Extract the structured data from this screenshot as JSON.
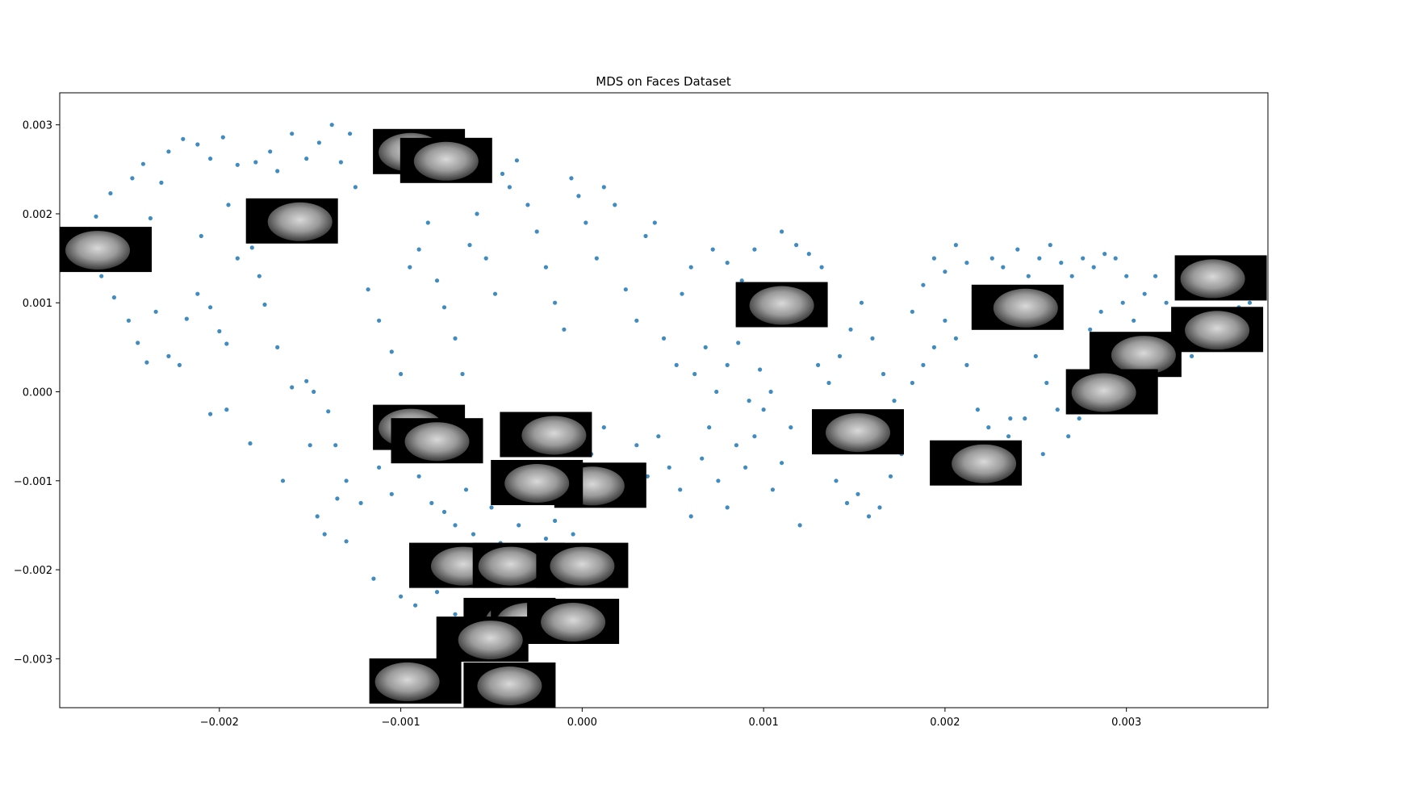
{
  "chart_data": {
    "type": "scatter",
    "title": "MDS on Faces Dataset",
    "xlabel": "",
    "ylabel": "",
    "xlim": [
      -0.00288,
      0.00378
    ],
    "ylim": [
      -0.00355,
      0.00336
    ],
    "xticks": [
      {
        "value": -0.002,
        "label": "−0.002"
      },
      {
        "value": -0.001,
        "label": "−0.001"
      },
      {
        "value": 0.0,
        "label": "0.000"
      },
      {
        "value": 0.001,
        "label": "0.001"
      },
      {
        "value": 0.002,
        "label": "0.002"
      },
      {
        "value": 0.003,
        "label": "0.003"
      }
    ],
    "yticks": [
      {
        "value": 0.003,
        "label": "0.003"
      },
      {
        "value": 0.002,
        "label": "0.002"
      },
      {
        "value": 0.001,
        "label": "0.001"
      },
      {
        "value": 0.0,
        "label": "0.000"
      },
      {
        "value": -0.001,
        "label": "−0.001"
      },
      {
        "value": -0.002,
        "label": "−0.002"
      },
      {
        "value": -0.003,
        "label": "−0.003"
      }
    ],
    "marker_color": "#1f77b4",
    "grid": false,
    "legend": "none",
    "points": [
      [
        -0.00268,
        0.00197
      ],
      [
        -0.0026,
        0.00223
      ],
      [
        -0.00248,
        0.0024
      ],
      [
        -0.00242,
        0.00256
      ],
      [
        -0.00232,
        0.00235
      ],
      [
        -0.00228,
        0.0027
      ],
      [
        -0.0022,
        0.00284
      ],
      [
        -0.00212,
        0.00278
      ],
      [
        -0.00205,
        0.00262
      ],
      [
        -0.00198,
        0.00286
      ],
      [
        -0.0019,
        0.00255
      ],
      [
        -0.0018,
        0.00258
      ],
      [
        -0.00172,
        0.0027
      ],
      [
        -0.00168,
        0.00248
      ],
      [
        -0.0016,
        0.0029
      ],
      [
        -0.00152,
        0.00262
      ],
      [
        -0.00145,
        0.0028
      ],
      [
        -0.00138,
        0.003
      ],
      [
        -0.00133,
        0.00258
      ],
      [
        -0.00128,
        0.0029
      ],
      [
        -0.00265,
        0.0013
      ],
      [
        -0.00258,
        0.00106
      ],
      [
        -0.0025,
        0.0008
      ],
      [
        -0.00245,
        0.00055
      ],
      [
        -0.0024,
        0.00033
      ],
      [
        -0.00235,
        0.0009
      ],
      [
        -0.00228,
        0.0004
      ],
      [
        -0.00222,
        0.0003
      ],
      [
        -0.00218,
        0.00082
      ],
      [
        -0.00212,
        0.0011
      ],
      [
        -0.00205,
        0.00095
      ],
      [
        -0.002,
        0.00068
      ],
      [
        -0.00196,
        0.00054
      ],
      [
        -0.0019,
        0.0015
      ],
      [
        -0.00182,
        0.00162
      ],
      [
        -0.00178,
        0.0013
      ],
      [
        -0.00175,
        0.00098
      ],
      [
        -0.00168,
        0.0005
      ],
      [
        -0.0016,
        5e-05
      ],
      [
        -0.00152,
        0.00012
      ],
      [
        -0.00148,
        0.0
      ],
      [
        -0.0014,
        -0.00022
      ],
      [
        -0.00136,
        -0.0006
      ],
      [
        -0.0013,
        -0.001
      ],
      [
        -0.00122,
        -0.00125
      ],
      [
        -0.00118,
        0.00115
      ],
      [
        -0.00112,
        0.0008
      ],
      [
        -0.00105,
        0.00045
      ],
      [
        -0.001,
        0.0002
      ],
      [
        -0.00095,
        0.0014
      ],
      [
        -0.0009,
        0.0016
      ],
      [
        -0.00085,
        0.0019
      ],
      [
        -0.0008,
        0.00125
      ],
      [
        -0.00076,
        0.00095
      ],
      [
        -0.0007,
        0.0006
      ],
      [
        -0.00066,
        0.0002
      ],
      [
        -0.00062,
        0.00165
      ],
      [
        -0.00058,
        0.002
      ],
      [
        -0.00053,
        0.0015
      ],
      [
        -0.00048,
        0.0011
      ],
      [
        -0.00044,
        0.00245
      ],
      [
        -0.0004,
        0.0023
      ],
      [
        -0.00036,
        0.0026
      ],
      [
        -0.0003,
        0.0021
      ],
      [
        -0.00025,
        0.0018
      ],
      [
        -0.0002,
        0.0014
      ],
      [
        -0.00015,
        0.001
      ],
      [
        -0.0001,
        0.0007
      ],
      [
        -6e-05,
        0.0024
      ],
      [
        -2e-05,
        0.0022
      ],
      [
        2e-05,
        0.0019
      ],
      [
        8e-05,
        0.0015
      ],
      [
        0.00012,
        0.0023
      ],
      [
        0.00018,
        0.0021
      ],
      [
        0.00024,
        0.00115
      ],
      [
        0.0003,
        0.0008
      ],
      [
        0.00035,
        0.00175
      ],
      [
        0.0004,
        0.0019
      ],
      [
        0.00045,
        0.0006
      ],
      [
        0.00052,
        0.0003
      ],
      [
        -0.00265,
        0.0016
      ],
      [
        -0.00255,
        0.0018
      ],
      [
        -0.00238,
        0.00195
      ],
      [
        -0.0021,
        0.00175
      ],
      [
        -0.00195,
        0.0021
      ],
      [
        -0.0018,
        0.00195
      ],
      [
        -0.0017,
        0.00175
      ],
      [
        -0.0015,
        0.0021
      ],
      [
        -0.00138,
        0.0018
      ],
      [
        -0.00125,
        0.0023
      ],
      [
        -0.00205,
        -0.00025
      ],
      [
        -0.00196,
        -0.0002
      ],
      [
        -0.00183,
        -0.00058
      ],
      [
        -0.00165,
        -0.001
      ],
      [
        -0.0015,
        -0.0006
      ],
      [
        -0.00146,
        -0.0014
      ],
      [
        -0.00142,
        -0.0016
      ],
      [
        -0.00135,
        -0.0012
      ],
      [
        -0.0013,
        -0.00168
      ],
      [
        -0.00112,
        -0.00085
      ],
      [
        -0.00105,
        -0.00115
      ],
      [
        -0.00098,
        -0.0007
      ],
      [
        -0.0009,
        -0.00095
      ],
      [
        -0.00083,
        -0.00125
      ],
      [
        -0.00076,
        -0.00135
      ],
      [
        -0.0007,
        -0.0015
      ],
      [
        -0.00064,
        -0.0011
      ],
      [
        -0.0006,
        -0.0016
      ],
      [
        -0.00055,
        -0.0018
      ],
      [
        -0.0005,
        -0.0013
      ],
      [
        -0.00045,
        -0.0017
      ],
      [
        -0.0004,
        -0.00195
      ],
      [
        -0.00035,
        -0.0015
      ],
      [
        -0.0003,
        -0.0018
      ],
      [
        -0.00025,
        -0.002
      ],
      [
        -0.0002,
        -0.00165
      ],
      [
        -0.00015,
        -0.00145
      ],
      [
        -0.0001,
        -0.0019
      ],
      [
        -5e-05,
        -0.0016
      ],
      [
        0.0,
        -0.0018
      ],
      [
        -0.00115,
        -0.0021
      ],
      [
        -0.001,
        -0.0023
      ],
      [
        -0.00092,
        -0.0024
      ],
      [
        -0.0008,
        -0.00225
      ],
      [
        -0.0007,
        -0.0025
      ],
      [
        -0.0006,
        -0.00255
      ],
      [
        -0.00052,
        -0.0024
      ],
      [
        -0.00045,
        -0.0026
      ],
      [
        -0.0004,
        -0.00275
      ],
      [
        -0.00032,
        -0.00245
      ],
      [
        -0.00025,
        -0.00268
      ],
      [
        -0.00018,
        -0.00258
      ],
      [
        -0.0001,
        -0.00235
      ],
      [
        8e-05,
        -0.0024
      ],
      [
        0.00015,
        -0.00195
      ],
      [
        5e-05,
        -0.0007
      ],
      [
        0.00012,
        -0.0004
      ],
      [
        0.0002,
        -0.0009
      ],
      [
        0.00025,
        -0.0012
      ],
      [
        0.0003,
        -0.0006
      ],
      [
        0.00036,
        -0.00095
      ],
      [
        0.00042,
        -0.0005
      ],
      [
        0.00048,
        -0.00085
      ],
      [
        0.00054,
        -0.0011
      ],
      [
        0.0006,
        -0.0014
      ],
      [
        0.00066,
        -0.00075
      ],
      [
        0.0007,
        -0.0004
      ],
      [
        0.00075,
        -0.001
      ],
      [
        0.0008,
        -0.0013
      ],
      [
        0.00085,
        -0.0006
      ],
      [
        0.0009,
        -0.00085
      ],
      [
        0.00095,
        -0.0005
      ],
      [
        0.001,
        -0.0002
      ],
      [
        0.00105,
        -0.0011
      ],
      [
        0.0011,
        -0.0008
      ],
      [
        0.00115,
        -0.0004
      ],
      [
        0.0012,
        -0.0015
      ],
      [
        0.00062,
        0.0002
      ],
      [
        0.00068,
        0.0005
      ],
      [
        0.00074,
        0.0
      ],
      [
        0.0008,
        0.0003
      ],
      [
        0.00086,
        0.00055
      ],
      [
        0.00092,
        -0.0001
      ],
      [
        0.00098,
        0.00025
      ],
      [
        0.00104,
        0.0
      ],
      [
        0.00055,
        0.0011
      ],
      [
        0.0006,
        0.0014
      ],
      [
        0.00072,
        0.0016
      ],
      [
        0.0008,
        0.00145
      ],
      [
        0.00088,
        0.00125
      ],
      [
        0.00095,
        0.0016
      ],
      [
        0.0011,
        0.0018
      ],
      [
        0.00118,
        0.00165
      ],
      [
        0.00125,
        0.00155
      ],
      [
        0.00132,
        0.0014
      ],
      [
        0.0013,
        0.0003
      ],
      [
        0.00136,
        0.0001
      ],
      [
        0.00142,
        0.0004
      ],
      [
        0.00148,
        0.0007
      ],
      [
        0.00154,
        0.001
      ],
      [
        0.0016,
        0.0006
      ],
      [
        0.00166,
        0.0002
      ],
      [
        0.00172,
        -0.0001
      ],
      [
        0.0014,
        -0.001
      ],
      [
        0.00146,
        -0.00125
      ],
      [
        0.00152,
        -0.00115
      ],
      [
        0.00158,
        -0.0014
      ],
      [
        0.00164,
        -0.0013
      ],
      [
        0.0017,
        -0.00095
      ],
      [
        0.00176,
        -0.0007
      ],
      [
        0.00182,
        0.0001
      ],
      [
        0.00188,
        0.0003
      ],
      [
        0.00194,
        0.0005
      ],
      [
        0.002,
        0.0008
      ],
      [
        0.00206,
        0.0006
      ],
      [
        0.00212,
        0.0003
      ],
      [
        0.00218,
        -0.0002
      ],
      [
        0.00224,
        -0.0004
      ],
      [
        0.0023,
        -0.0006
      ],
      [
        0.00236,
        -0.0003
      ],
      [
        0.00182,
        0.0009
      ],
      [
        0.00188,
        0.0012
      ],
      [
        0.00194,
        0.0015
      ],
      [
        0.002,
        0.00135
      ],
      [
        0.00206,
        0.00165
      ],
      [
        0.00212,
        0.00145
      ],
      [
        0.0022,
        0.00115
      ],
      [
        0.00226,
        0.0015
      ],
      [
        0.00232,
        0.0014
      ],
      [
        0.0024,
        0.0016
      ],
      [
        0.00246,
        0.0013
      ],
      [
        0.00252,
        0.0015
      ],
      [
        0.00258,
        0.00165
      ],
      [
        0.00264,
        0.00145
      ],
      [
        0.0027,
        0.0013
      ],
      [
        0.00276,
        0.0015
      ],
      [
        0.00282,
        0.0014
      ],
      [
        0.00288,
        0.00155
      ],
      [
        0.00294,
        0.0015
      ],
      [
        0.003,
        0.0013
      ],
      [
        0.0025,
        0.0004
      ],
      [
        0.00256,
        0.0001
      ],
      [
        0.00262,
        -0.0002
      ],
      [
        0.00268,
        -0.0005
      ],
      [
        0.00274,
        -0.0003
      ],
      [
        0.0028,
        0.0007
      ],
      [
        0.00286,
        0.0009
      ],
      [
        0.00292,
        0.0006
      ],
      [
        0.00298,
        0.001
      ],
      [
        0.00304,
        0.0008
      ],
      [
        0.0031,
        0.0011
      ],
      [
        0.00316,
        0.0013
      ],
      [
        0.00322,
        0.001
      ],
      [
        0.0033,
        0.0006
      ],
      [
        0.00336,
        0.0004
      ],
      [
        0.00344,
        0.00085
      ],
      [
        0.0035,
        0.0011
      ],
      [
        0.00356,
        0.0007
      ],
      [
        0.00362,
        0.00095
      ],
      [
        0.00368,
        0.001
      ],
      [
        0.00235,
        -0.0005
      ],
      [
        0.00244,
        -0.0003
      ],
      [
        0.00254,
        -0.0007
      ],
      [
        0.00226,
        -0.00075
      ],
      [
        0.00212,
        -0.00095
      ]
    ],
    "thumbnails": [
      {
        "x": -0.0009,
        "y": 0.0027
      },
      {
        "x": -0.00075,
        "y": 0.0026
      },
      {
        "x": -0.0016,
        "y": 0.00192
      },
      {
        "x": -0.00265,
        "y": 0.0016
      },
      {
        "x": 0.0011,
        "y": 0.00098
      },
      {
        "x": 0.0024,
        "y": 0.00095
      },
      {
        "x": 0.00352,
        "y": 0.00128
      },
      {
        "x": 0.0035,
        "y": 0.0007
      },
      {
        "x": 0.00305,
        "y": 0.00042
      },
      {
        "x": 0.00292,
        "y": 0.0
      },
      {
        "x": 0.00152,
        "y": -0.00045
      },
      {
        "x": 0.00217,
        "y": -0.0008
      },
      {
        "x": -0.0009,
        "y": -0.0004
      },
      {
        "x": -0.0008,
        "y": -0.00055
      },
      {
        "x": -0.0002,
        "y": -0.00048
      },
      {
        "x": 0.0001,
        "y": -0.00105
      },
      {
        "x": -0.00025,
        "y": -0.00102
      },
      {
        "x": -0.0007,
        "y": -0.00195
      },
      {
        "x": -0.00035,
        "y": -0.00195
      },
      {
        "x": 0.0,
        "y": -0.00195
      },
      {
        "x": -0.0004,
        "y": -0.00257
      },
      {
        "x": -0.00025,
        "y": -0.00258
      },
      {
        "x": -5e-05,
        "y": -0.00258
      },
      {
        "x": -0.00055,
        "y": -0.00278
      },
      {
        "x": -0.00092,
        "y": -0.00325
      },
      {
        "x": -0.0004,
        "y": -0.0033
      }
    ]
  }
}
